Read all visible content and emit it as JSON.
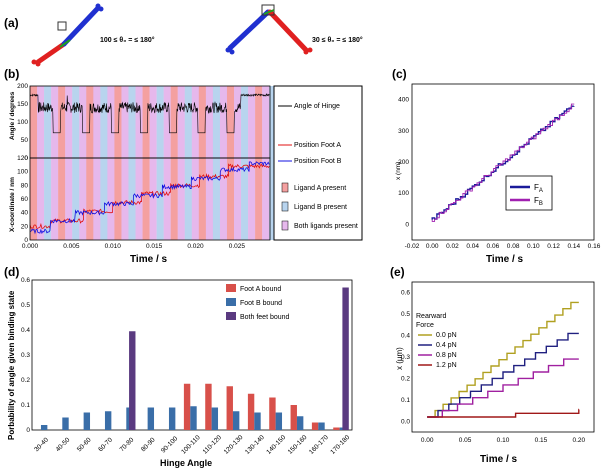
{
  "panel_a": {
    "label": "(a)",
    "eq_left": "100 ≤ θ₀ = ≤ 180°",
    "eq_right": "30 ≤ θ₀ = ≤ 180°"
  },
  "panel_b": {
    "label": "(b)",
    "ylabel_top": "Angle / degrees",
    "ylabel_bottom": "X-coordinate / nm",
    "xlabel": "Time / s",
    "legend": {
      "hinge": "Angle of Hinge",
      "footA": "Position Foot A",
      "footB": "Position Foot B",
      "ligA": "Ligand A present",
      "ligB": "Ligand B present",
      "both": "Both ligands present"
    },
    "colors": {
      "ligA": "#f4a0a0",
      "ligB": "#b8d4ee",
      "both": "#e6b8ec",
      "footA": "#e01010",
      "footB": "#1010e0"
    }
  },
  "panel_c": {
    "label": "(c)",
    "ylabel": "x (nm)",
    "xlabel": "Time / s",
    "legend_a": "F",
    "legend_a_sub": "A",
    "legend_b": "F",
    "legend_b_sub": "B"
  },
  "panel_d": {
    "label": "(d)",
    "ylabel": "Porbability of angle given binding state",
    "xlabel": "Hinge Angle",
    "legend": {
      "a": "Foot A bound",
      "b": "Foot B bound",
      "c": "Both feet bound"
    }
  },
  "panel_e": {
    "label": "(e)",
    "ylabel": "x (μm)",
    "xlabel": "Time / s",
    "legend_title_1": "Rearward",
    "legend_title_2": "Force",
    "forces": [
      "0.0 pN",
      "0.4 pN",
      "0.8 pN",
      "1.2 pN"
    ]
  },
  "chart_data": [
    {
      "id": "b-top",
      "type": "line",
      "title": "",
      "xlabel": "Time / s",
      "ylabel": "Angle / degrees",
      "xlim": [
        0,
        0.029
      ],
      "ylim": [
        0,
        200
      ],
      "x_ticks": [
        0.0,
        0.005,
        0.01,
        0.015,
        0.02,
        0.025
      ],
      "y_ticks": [
        0,
        50,
        100,
        150,
        200
      ],
      "series": [
        {
          "name": "Angle of Hinge",
          "baseline": 175,
          "dip": 70,
          "color": "#000000"
        }
      ]
    },
    {
      "id": "b-bottom",
      "type": "line",
      "xlabel": "Time / s",
      "ylabel": "X-coordinate / nm",
      "xlim": [
        0,
        0.029
      ],
      "ylim": [
        0,
        120
      ],
      "x_ticks": [
        0.0,
        0.005,
        0.01,
        0.015,
        0.02,
        0.025
      ],
      "y_ticks": [
        0,
        20,
        40,
        60,
        80,
        100,
        120
      ],
      "series": [
        {
          "name": "Position Foot A",
          "x": [
            0.0,
            0.0025,
            0.0065,
            0.01,
            0.0135,
            0.017,
            0.0205,
            0.024
          ],
          "values": [
            20,
            28,
            42,
            55,
            68,
            80,
            93,
            108
          ],
          "color": "#e01010"
        },
        {
          "name": "Position Foot B",
          "x": [
            0.0,
            0.0025,
            0.0055,
            0.009,
            0.0125,
            0.016,
            0.0195,
            0.023,
            0.0265
          ],
          "values": [
            13,
            28,
            40,
            53,
            65,
            78,
            90,
            103,
            112
          ],
          "color": "#1010e0"
        }
      ]
    },
    {
      "id": "c",
      "type": "line",
      "xlabel": "Time / s",
      "ylabel": "x (nm)",
      "xlim": [
        -0.02,
        0.16
      ],
      "ylim": [
        -50,
        450
      ],
      "x_ticks": [
        -0.02,
        0.0,
        0.02,
        0.04,
        0.06,
        0.08,
        0.1,
        0.12,
        0.14,
        0.16
      ],
      "y_ticks": [
        0,
        100,
        200,
        300,
        400
      ],
      "series": [
        {
          "name": "FA",
          "x": [
            0.0,
            0.14
          ],
          "values": [
            15,
            385
          ],
          "color": "#1a1a9a"
        },
        {
          "name": "FB",
          "x": [
            0.0,
            0.14
          ],
          "values": [
            15,
            385
          ],
          "color": "#a020b0"
        }
      ]
    },
    {
      "id": "d",
      "type": "bar",
      "xlabel": "Hinge Angle",
      "ylabel": "Porbability of angle given binding state",
      "ylim": [
        0,
        0.6
      ],
      "y_ticks": [
        0,
        0.1,
        0.2,
        0.3,
        0.4,
        0.5,
        0.6
      ],
      "categories": [
        "30-40",
        "40-50",
        "50-60",
        "60-70",
        "70-80",
        "80-90",
        "90-100",
        "100-110",
        "110-120",
        "120-130",
        "130-140",
        "140-150",
        "150-160",
        "160-170",
        "170-180"
      ],
      "series": [
        {
          "name": "Foot A bound",
          "color": "#d8504a",
          "values": [
            0,
            0,
            0,
            0,
            0,
            0,
            0,
            0.185,
            0.185,
            0.175,
            0.145,
            0.13,
            0.1,
            0.03,
            0.01
          ]
        },
        {
          "name": "Foot B bound",
          "color": "#3a6ea8",
          "values": [
            0.02,
            0.05,
            0.07,
            0.075,
            0.09,
            0.09,
            0.09,
            0.095,
            0.09,
            0.075,
            0.07,
            0.07,
            0.055,
            0.03,
            0.01
          ]
        },
        {
          "name": "Both feet bound",
          "color": "#5a3a80",
          "values": [
            0,
            0,
            0,
            0,
            0.395,
            0,
            0,
            0,
            0,
            0,
            0,
            0,
            0,
            0,
            0.57
          ]
        }
      ]
    },
    {
      "id": "e",
      "type": "line",
      "xlabel": "Time / s",
      "ylabel": "x (μm)",
      "xlim": [
        -0.02,
        0.22
      ],
      "ylim": [
        -0.05,
        0.65
      ],
      "x_ticks": [
        0.0,
        0.05,
        0.1,
        0.15,
        0.2
      ],
      "y_ticks": [
        0.0,
        0.1,
        0.2,
        0.3,
        0.4,
        0.5,
        0.6
      ],
      "series": [
        {
          "name": "0.0 pN",
          "color": "#b0a020",
          "end": 0.555,
          "steps": 18
        },
        {
          "name": "0.4 pN",
          "color": "#202080",
          "end": 0.41,
          "steps": 13
        },
        {
          "name": "0.8 pN",
          "color": "#a020a0",
          "end": 0.29,
          "steps": 9
        },
        {
          "name": "1.2 pN",
          "color": "#a01818",
          "end": 0.055,
          "steps": 2
        }
      ]
    }
  ]
}
